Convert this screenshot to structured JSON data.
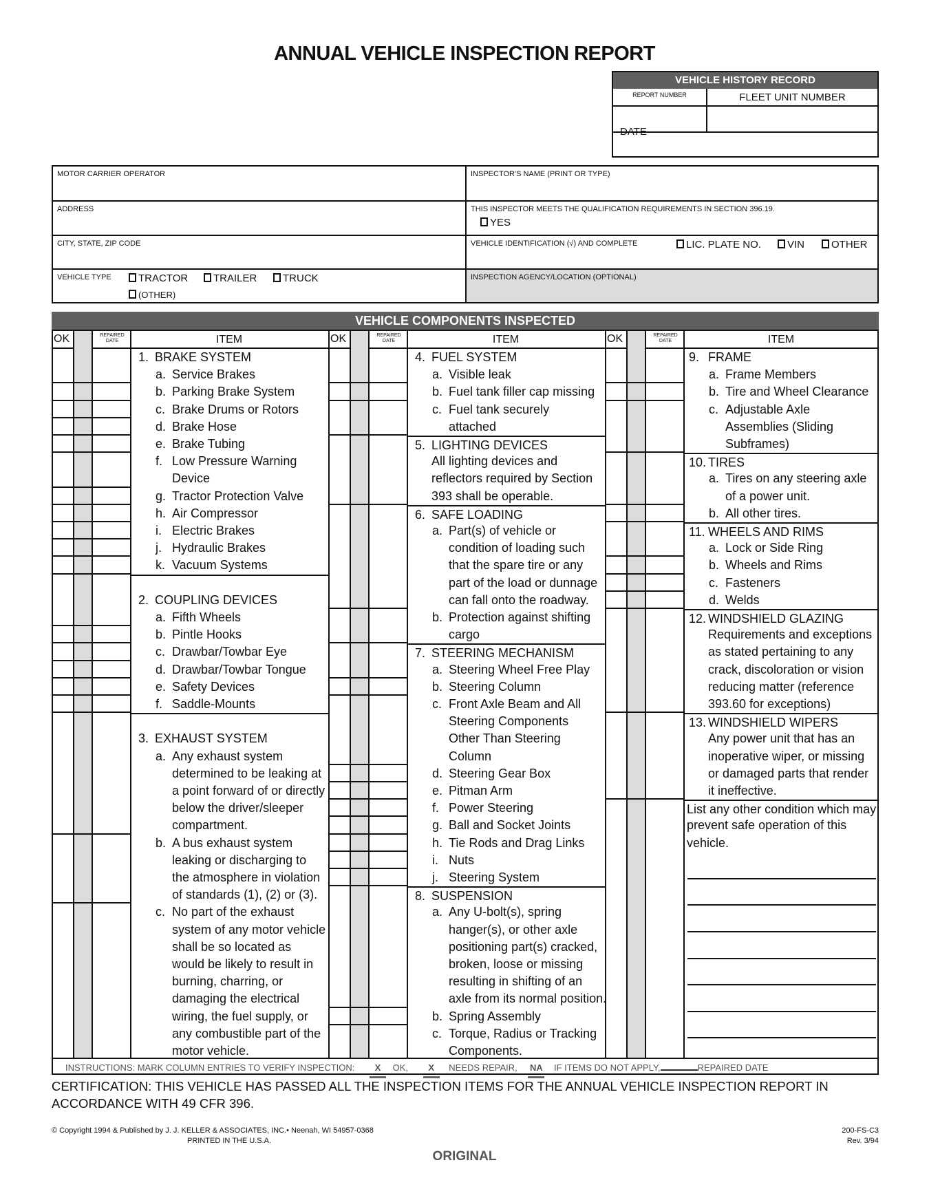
{
  "title": "ANNUAL VEHICLE INSPECTION REPORT",
  "history": {
    "header": "VEHICLE HISTORY RECORD",
    "report_number": "REPORT NUMBER",
    "fleet_unit": "FLEET UNIT NUMBER",
    "date": "DATE"
  },
  "info": {
    "motor_carrier": "MOTOR CARRIER OPERATOR",
    "address": "ADDRESS",
    "city": "CITY, STATE, ZIP CODE",
    "vehicle_type": "VEHICLE TYPE",
    "tractor": "TRACTOR",
    "trailer": "TRAILER",
    "truck": "TRUCK",
    "other_type": "(OTHER)",
    "inspector_name": "INSPECTOR'S NAME (PRINT OR TYPE)",
    "qualification": "THIS INSPECTOR MEETS THE QUALIFICATION REQUIREMENTS IN SECTION 396.19.",
    "yes": "YES",
    "vehicle_id": "VEHICLE IDENTIFICATION (√) AND COMPLETE",
    "lic": "LIC. PLATE NO.",
    "vin": "VIN",
    "other_id": "OTHER",
    "agency": "INSPECTION AGENCY/LOCATION (OPTIONAL)"
  },
  "components": {
    "header": "VEHICLE COMPONENTS INSPECTED",
    "col_ok": "OK",
    "col_needs": "NEEDS REPAIR",
    "col_repaired": "REPAIRED DATE",
    "col_item": "ITEM",
    "columns": [
      [
        {
          "k": "h",
          "n": "1.",
          "t": "BRAKE SYSTEM"
        },
        {
          "k": "s",
          "n": "a.",
          "t": "Service Brakes"
        },
        {
          "k": "s",
          "n": "b.",
          "t": "Parking Brake System"
        },
        {
          "k": "s",
          "n": "c.",
          "t": "Brake Drums or Rotors"
        },
        {
          "k": "s",
          "n": "d.",
          "t": "Brake Hose"
        },
        {
          "k": "s",
          "n": "e.",
          "t": "Brake Tubing"
        },
        {
          "k": "s",
          "n": "f.",
          "t": "Low Pressure Warning"
        },
        {
          "k": "c",
          "t": "Device"
        },
        {
          "k": "s",
          "n": "g.",
          "t": "Tractor Protection Valve"
        },
        {
          "k": "s",
          "n": "h.",
          "t": "Air Compressor"
        },
        {
          "k": "s",
          "n": "i.",
          "t": "Electric Brakes"
        },
        {
          "k": "s",
          "n": "j.",
          "t": "Hydraulic Brakes"
        },
        {
          "k": "s",
          "n": "k.",
          "t": "Vacuum Systems"
        },
        {
          "k": "b",
          "d": true
        },
        {
          "k": "h",
          "n": "2.",
          "t": "COUPLING DEVICES"
        },
        {
          "k": "s",
          "n": "a.",
          "t": "Fifth Wheels"
        },
        {
          "k": "s",
          "n": "b.",
          "t": "Pintle Hooks"
        },
        {
          "k": "s",
          "n": "c.",
          "t": "Drawbar/Towbar Eye"
        },
        {
          "k": "s",
          "n": "d.",
          "t": "Drawbar/Towbar Tongue"
        },
        {
          "k": "s",
          "n": "e.",
          "t": "Safety Devices"
        },
        {
          "k": "s",
          "n": "f.",
          "t": "Saddle-Mounts"
        },
        {
          "k": "b",
          "d": true
        },
        {
          "k": "h",
          "n": "3.",
          "t": "EXHAUST SYSTEM"
        },
        {
          "k": "s",
          "n": "a.",
          "t": "Any exhaust system"
        },
        {
          "k": "c",
          "t": "determined to be leaking at"
        },
        {
          "k": "c",
          "t": "a point forward of or directly"
        },
        {
          "k": "c",
          "t": "below the driver/sleeper"
        },
        {
          "k": "c",
          "t": "compartment."
        },
        {
          "k": "s",
          "n": "b.",
          "t": "A bus exhaust system"
        },
        {
          "k": "c",
          "t": "leaking or discharging to"
        },
        {
          "k": "c",
          "t": "the atmosphere in violation"
        },
        {
          "k": "c",
          "t": "of standards (1), (2) or (3)."
        },
        {
          "k": "s",
          "n": "c.",
          "t": "No part of the exhaust"
        },
        {
          "k": "c",
          "t": "system of any motor vehicle"
        },
        {
          "k": "c",
          "t": "shall be so located as"
        },
        {
          "k": "c",
          "t": "would be likely to result in"
        },
        {
          "k": "c",
          "t": "burning, charring, or"
        },
        {
          "k": "c",
          "t": "damaging the electrical"
        },
        {
          "k": "c",
          "t": "wiring, the fuel supply, or"
        },
        {
          "k": "c",
          "t": "any combustible part of the"
        },
        {
          "k": "c",
          "t": "motor vehicle."
        }
      ],
      [
        {
          "k": "h",
          "n": "4.",
          "t": "FUEL SYSTEM"
        },
        {
          "k": "s",
          "n": "a.",
          "t": "Visible leak"
        },
        {
          "k": "s",
          "n": "b.",
          "t": "Fuel tank filler cap missing"
        },
        {
          "k": "s",
          "n": "c.",
          "t": "Fuel tank securely"
        },
        {
          "k": "c",
          "t": "attached"
        },
        {
          "k": "h",
          "n": "5.",
          "t": "LIGHTING DEVICES",
          "d": true
        },
        {
          "k": "p",
          "t": "All lighting devices and"
        },
        {
          "k": "c",
          "t": "reflectors required by Section"
        },
        {
          "k": "c",
          "t": "393 shall be operable."
        },
        {
          "k": "h",
          "n": "6.",
          "t": "SAFE LOADING",
          "d": true
        },
        {
          "k": "s",
          "n": "a.",
          "t": "Part(s) of vehicle or"
        },
        {
          "k": "c",
          "t": "condition of loading such"
        },
        {
          "k": "c",
          "t": "that the spare tire or any"
        },
        {
          "k": "c",
          "t": "part of the load or dunnage"
        },
        {
          "k": "c",
          "t": "can fall onto the roadway."
        },
        {
          "k": "s",
          "n": "b.",
          "t": "Protection against shifting"
        },
        {
          "k": "c",
          "t": "cargo"
        },
        {
          "k": "h",
          "n": "7.",
          "t": "STEERING MECHANISM",
          "d": true
        },
        {
          "k": "s",
          "n": "a.",
          "t": "Steering Wheel Free Play"
        },
        {
          "k": "s",
          "n": "b.",
          "t": "Steering Column"
        },
        {
          "k": "s",
          "n": "c.",
          "t": "Front Axle Beam and All"
        },
        {
          "k": "c",
          "t": "Steering Components"
        },
        {
          "k": "c",
          "t": "Other Than Steering"
        },
        {
          "k": "c",
          "t": "Column"
        },
        {
          "k": "s",
          "n": "d.",
          "t": "Steering Gear Box"
        },
        {
          "k": "s",
          "n": "e.",
          "t": "Pitman Arm"
        },
        {
          "k": "s",
          "n": "f.",
          "t": "Power Steering"
        },
        {
          "k": "s",
          "n": "g.",
          "t": "Ball and Socket Joints"
        },
        {
          "k": "s",
          "n": "h.",
          "t": "Tie Rods and Drag Links"
        },
        {
          "k": "s",
          "n": "i.",
          "t": "Nuts"
        },
        {
          "k": "s",
          "n": "j.",
          "t": "Steering System"
        },
        {
          "k": "h",
          "n": "8.",
          "t": "SUSPENSION",
          "d": true
        },
        {
          "k": "s",
          "n": "a.",
          "t": "Any U-bolt(s), spring"
        },
        {
          "k": "c",
          "t": "hanger(s), or other axle"
        },
        {
          "k": "c",
          "t": "positioning part(s) cracked,"
        },
        {
          "k": "c",
          "t": "broken, loose or missing"
        },
        {
          "k": "c",
          "t": "resulting in shifting of an"
        },
        {
          "k": "c",
          "t": "axle from its normal position."
        },
        {
          "k": "s",
          "n": "b.",
          "t": "Spring Assembly"
        },
        {
          "k": "s",
          "n": "c.",
          "t": "Torque, Radius or Tracking"
        },
        {
          "k": "c",
          "t": "Components."
        }
      ],
      [
        {
          "k": "h",
          "n": "9.",
          "t": "FRAME"
        },
        {
          "k": "s",
          "n": "a.",
          "t": "Frame Members"
        },
        {
          "k": "s",
          "n": "b.",
          "t": "Tire and Wheel Clearance"
        },
        {
          "k": "s",
          "n": "c.",
          "t": "Adjustable Axle"
        },
        {
          "k": "c",
          "t": "Assemblies (Sliding"
        },
        {
          "k": "c",
          "t": "Subframes)"
        },
        {
          "k": "h",
          "n": "10.",
          "t": "TIRES",
          "d": true
        },
        {
          "k": "s",
          "n": "a.",
          "t": "Tires on any steering axle"
        },
        {
          "k": "c",
          "t": "of a power unit."
        },
        {
          "k": "s",
          "n": "b.",
          "t": "All other tires."
        },
        {
          "k": "h",
          "n": "11.",
          "t": "WHEELS AND RIMS",
          "d": true
        },
        {
          "k": "s",
          "n": "a.",
          "t": "Lock or Side Ring"
        },
        {
          "k": "s",
          "n": "b.",
          "t": "Wheels and Rims"
        },
        {
          "k": "s",
          "n": "c.",
          "t": "Fasteners"
        },
        {
          "k": "s",
          "n": "d.",
          "t": "Welds"
        },
        {
          "k": "h",
          "n": "12.",
          "t": "WINDSHIELD GLAZING",
          "d": true
        },
        {
          "k": "p",
          "t": "Requirements and exceptions"
        },
        {
          "k": "c",
          "t": "as stated pertaining to any"
        },
        {
          "k": "c",
          "t": "crack, discoloration or vision"
        },
        {
          "k": "c",
          "t": "reducing matter (reference"
        },
        {
          "k": "c",
          "t": "393.60 for exceptions)"
        },
        {
          "k": "h",
          "n": "13.",
          "t": "WINDSHIELD WIPERS",
          "d": true
        },
        {
          "k": "p",
          "t": "Any power unit that has an"
        },
        {
          "k": "c",
          "t": "inoperative wiper, or missing"
        },
        {
          "k": "c",
          "t": "or damaged parts that render"
        },
        {
          "k": "c",
          "t": "it ineffective."
        },
        {
          "k": "l",
          "t": "List any other condition which may",
          "d": true
        },
        {
          "k": "lc",
          "t": "prevent safe operation of this"
        },
        {
          "k": "lc",
          "t": "vehicle."
        }
      ]
    ]
  },
  "instructions": {
    "text": "INSTRUCTIONS: MARK COLUMN ENTRIES TO VERIFY INSPECTION:",
    "x1": "X",
    "ok": "OK,",
    "x2": "X",
    "needs": "NEEDS REPAIR,",
    "na": "NA",
    "na_text": "IF ITEMS DO NOT APPLY,",
    "repaired": "REPAIRED DATE"
  },
  "certification": "CERTIFICATION: THIS VEHICLE HAS PASSED ALL THE INSPECTION ITEMS FOR THE ANNUAL VEHICLE INSPECTION REPORT IN ACCORDANCE WITH 49 CFR 396.",
  "footer": {
    "copyright": "© Copyright 1994 & Published by J. J. KELLER & ASSOCIATES, INC.• Neenah, WI 54957-0368",
    "printed": "PRINTED IN THE U.S.A.",
    "form": "200-FS-C3",
    "rev": "Rev. 3/94",
    "original": "ORIGINAL"
  },
  "colors": {
    "header_gray": "#5f5f5f",
    "column_gray": "#dcdcdc"
  }
}
